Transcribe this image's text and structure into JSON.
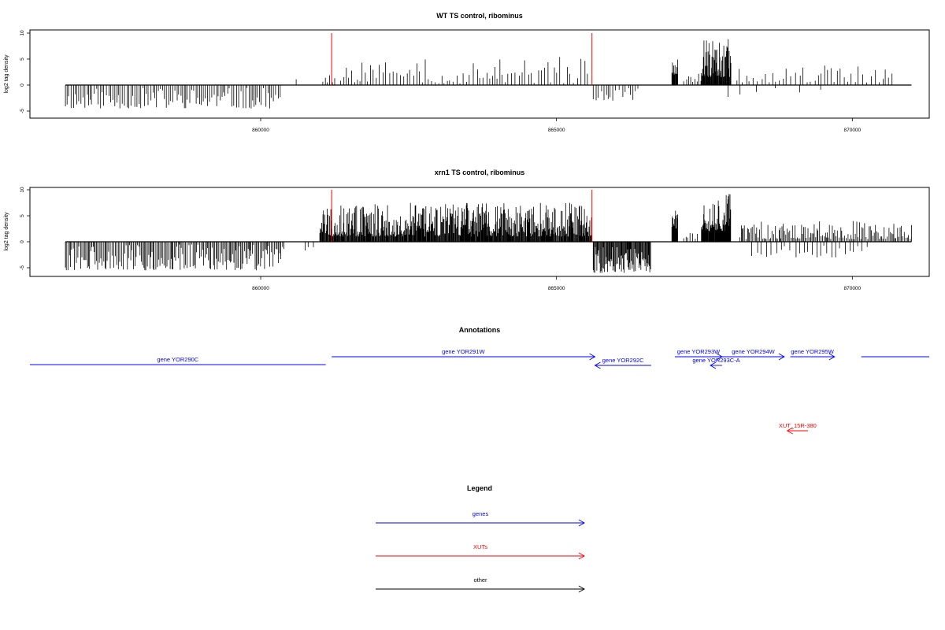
{
  "chart_data": [
    {
      "type": "bar",
      "title": "WT TS control, ribominus",
      "ylabel": "log2 tag density",
      "xlim": [
        856100,
        871300
      ],
      "ylim": [
        -6.5,
        10.5
      ],
      "x_ticks": [
        860000,
        865000,
        870000
      ],
      "x_tick_labels": [
        "860000",
        "865000",
        "870000"
      ],
      "y_ticks": [
        -5,
        0,
        5,
        10
      ],
      "y_tick_labels": [
        "-5",
        "0",
        "5",
        "10"
      ],
      "marker_lines": {
        "color": "#ff0000",
        "x": [
          861200,
          865600
        ],
        "height": 10
      },
      "segments": [
        {
          "start": 856700,
          "end": 860350,
          "min": -4.5,
          "max": -0.5,
          "spacing": 35,
          "seed": 11
        },
        {
          "start": 860600,
          "end": 860650,
          "min": 1.0,
          "max": 2.0,
          "spacing": 60,
          "seed": 12
        },
        {
          "start": 861050,
          "end": 861300,
          "min": 0.5,
          "max": 2.0,
          "spacing": 45,
          "seed": 13
        },
        {
          "start": 861350,
          "end": 865550,
          "min": 0.3,
          "max": 5.5,
          "spacing": 55,
          "seed": 14
        },
        {
          "start": 865620,
          "end": 866400,
          "min": -3.0,
          "max": -0.5,
          "spacing": 45,
          "seed": 15
        },
        {
          "start": 866950,
          "end": 867050,
          "min": 2.0,
          "max": 5.5,
          "spacing": 8,
          "seed": 16
        },
        {
          "start": 867150,
          "end": 867600,
          "min": 0.5,
          "max": 2.5,
          "spacing": 40,
          "seed": 17
        },
        {
          "start": 867450,
          "end": 867950,
          "min": 1.5,
          "max": 9.0,
          "spacing": 9,
          "seed": 18
        },
        {
          "start": 868050,
          "end": 870700,
          "min": 0.5,
          "max": 4.0,
          "spacing": 60,
          "seed": 19
        },
        {
          "start": 867900,
          "end": 869600,
          "min": -2.5,
          "max": -0.5,
          "spacing": 300,
          "seed": 20
        }
      ]
    },
    {
      "type": "bar",
      "title": "xrn1 TS control, ribominus",
      "ylabel": "log2 tag density",
      "xlim": [
        856100,
        871300
      ],
      "ylim": [
        -6.5,
        10.5
      ],
      "x_ticks": [
        860000,
        865000,
        870000
      ],
      "x_tick_labels": [
        "860000",
        "865000",
        "870000"
      ],
      "y_ticks": [
        -5,
        0,
        5,
        10
      ],
      "y_tick_labels": [
        "-5",
        "0",
        "5",
        "10"
      ],
      "marker_lines": {
        "color": "#ff0000",
        "x": [
          861200,
          865600
        ],
        "height": 10
      },
      "segments": [
        {
          "start": 856700,
          "end": 860400,
          "min": -5.5,
          "max": -0.5,
          "spacing": 22,
          "seed": 31
        },
        {
          "start": 860750,
          "end": 860900,
          "min": -1.8,
          "max": -0.5,
          "spacing": 70,
          "seed": 32
        },
        {
          "start": 861000,
          "end": 865600,
          "min": 1.0,
          "max": 7.5,
          "spacing": 10,
          "seed": 33
        },
        {
          "start": 865620,
          "end": 866600,
          "min": -6.0,
          "max": -1.0,
          "spacing": 12,
          "seed": 34
        },
        {
          "start": 866950,
          "end": 867050,
          "min": 2.5,
          "max": 6.0,
          "spacing": 8,
          "seed": 35
        },
        {
          "start": 867150,
          "end": 867400,
          "min": 0.5,
          "max": 2.0,
          "spacing": 40,
          "seed": 36
        },
        {
          "start": 867450,
          "end": 867950,
          "min": 2.0,
          "max": 9.8,
          "spacing": 8,
          "seed": 37
        },
        {
          "start": 868100,
          "end": 871000,
          "min": 0.5,
          "max": 4.0,
          "spacing": 22,
          "seed": 38
        },
        {
          "start": 868300,
          "end": 870300,
          "min": -3.0,
          "max": -0.5,
          "spacing": 80,
          "seed": 39
        }
      ]
    }
  ],
  "annotations": {
    "title": "Annotations",
    "xlim": [
      856100,
      871300
    ],
    "features": [
      {
        "label": "gene YOR290C",
        "start": 856100,
        "end": 861100,
        "strand": "-",
        "color": "#0000ff",
        "row": 3,
        "clip_left": true
      },
      {
        "label": "gene YOR291W",
        "start": 861200,
        "end": 865650,
        "strand": "+",
        "color": "#0000ff",
        "row": 1
      },
      {
        "label": "gene YOR292C",
        "start": 865650,
        "end": 866600,
        "strand": "-",
        "color": "#0000ff",
        "row": 2
      },
      {
        "label": "gene YOR293W",
        "start": 867000,
        "end": 867800,
        "strand": "+",
        "color": "#0000ff",
        "row": 1
      },
      {
        "label": "gene YOR293C-A",
        "start": 867600,
        "end": 867800,
        "strand": "-",
        "color": "#0000ff",
        "row": 2
      },
      {
        "label": "gene YOR294W",
        "start": 867800,
        "end": 868850,
        "strand": "+",
        "color": "#0000ff",
        "row": 1
      },
      {
        "label": "gene YOR295W",
        "start": 868950,
        "end": 869700,
        "strand": "+",
        "color": "#0000ff",
        "row": 1
      },
      {
        "label": "",
        "start": 870150,
        "end": 871300,
        "strand": "+",
        "color": "#0000ff",
        "row": 1,
        "clip_right": true
      },
      {
        "label": "XUT_15R-380",
        "start": 868900,
        "end": 869250,
        "strand": "-",
        "color": "#ff0000",
        "row": 4
      }
    ]
  },
  "legend": {
    "title": "Legend",
    "items": [
      {
        "label": "genes",
        "color": "#0000ff"
      },
      {
        "label": "XUTs",
        "color": "#ff0000"
      },
      {
        "label": "other",
        "color": "#000000"
      }
    ]
  }
}
